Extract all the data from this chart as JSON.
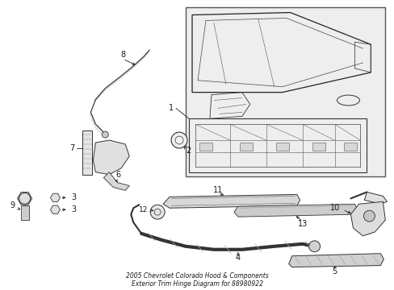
{
  "bg_color": "#ffffff",
  "line_color": "#1a1a1a",
  "box_fill": "#f0f0f0",
  "label_fontsize": 7,
  "title": "2005 Chevrolet Colorado Hood & Components\nExterior Trim Hinge Diagram for 88980922"
}
